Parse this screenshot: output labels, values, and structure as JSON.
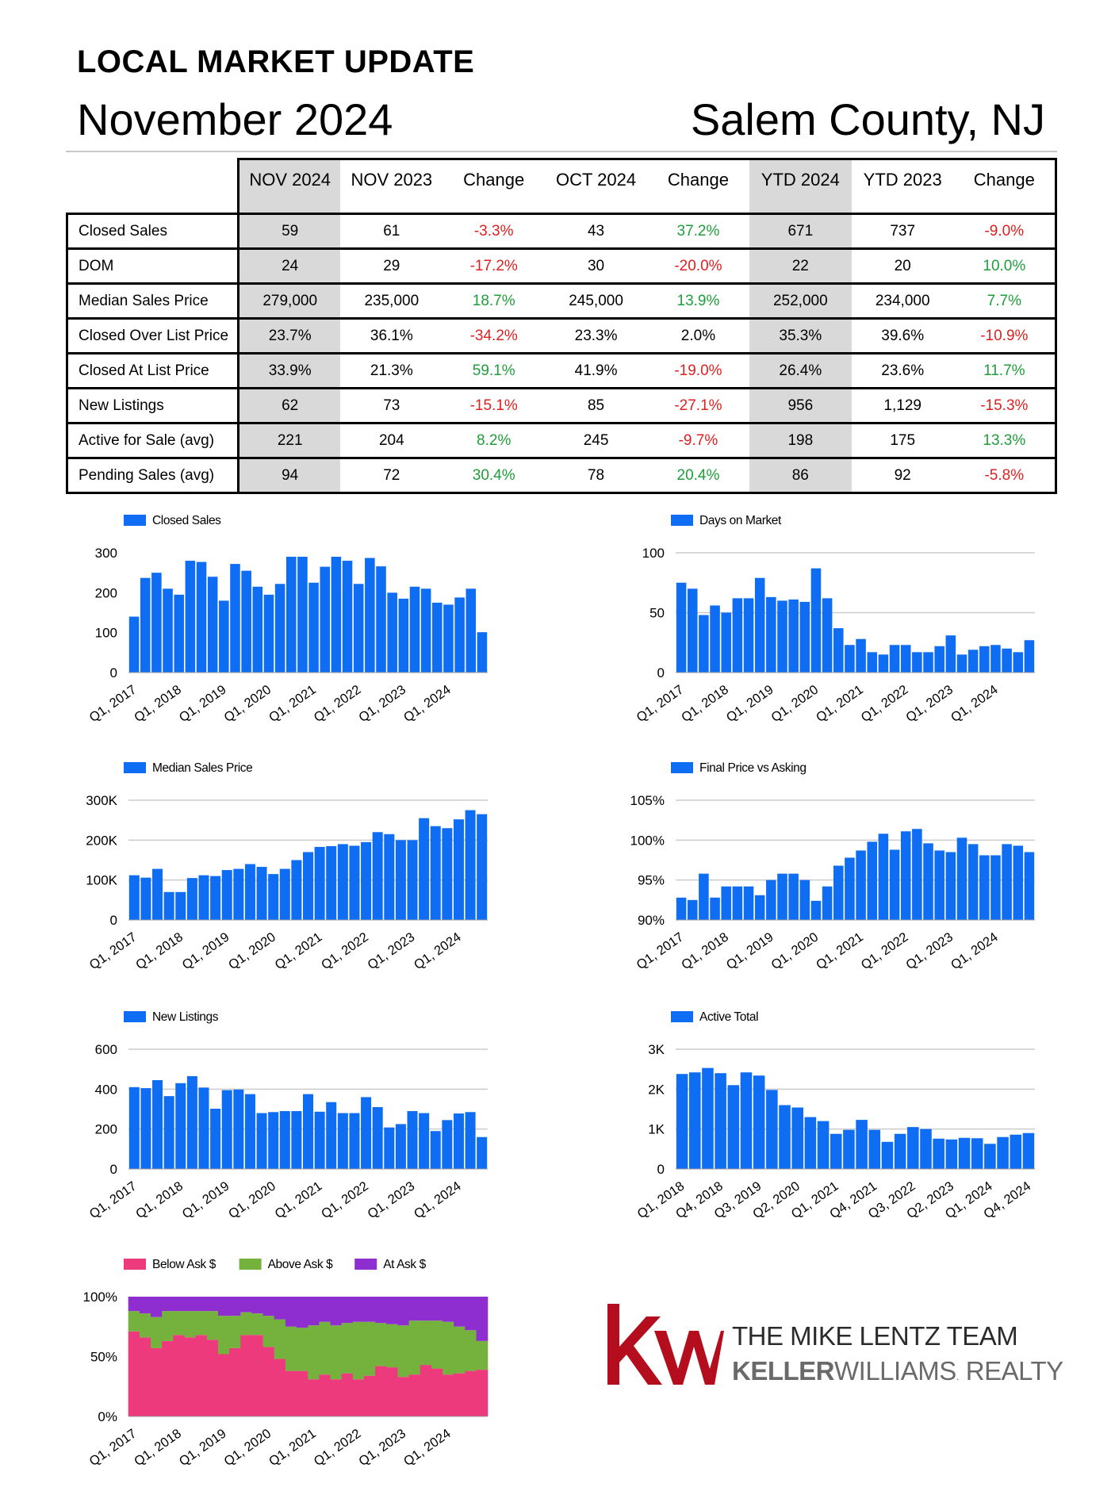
{
  "header": {
    "title": "LOCAL MARKET UPDATE",
    "month": "November 2024",
    "county": "Salem County, NJ"
  },
  "table": {
    "columns": [
      "NOV 2024",
      "NOV 2023",
      "Change",
      "OCT 2024",
      "Change",
      "YTD 2024",
      "YTD 2023",
      "Change"
    ],
    "rows": [
      {
        "label": "Closed Sales",
        "values": [
          "59",
          "61",
          "-3.3%",
          "43",
          "37.2%",
          "671",
          "737",
          "-9.0%"
        ]
      },
      {
        "label": "DOM",
        "values": [
          "24",
          "29",
          "-17.2%",
          "30",
          "-20.0%",
          "22",
          "20",
          "10.0%"
        ]
      },
      {
        "label": "Median Sales Price",
        "values": [
          "279,000",
          "235,000",
          "18.7%",
          "245,000",
          "13.9%",
          "252,000",
          "234,000",
          "7.7%"
        ]
      },
      {
        "label": "Closed Over List Price",
        "values": [
          "23.7%",
          "36.1%",
          "-34.2%",
          "23.3%",
          "2.0%",
          "35.3%",
          "39.6%",
          "-10.9%"
        ]
      },
      {
        "label": "Closed At List Price",
        "values": [
          "33.9%",
          "21.3%",
          "59.1%",
          "41.9%",
          "-19.0%",
          "26.4%",
          "23.6%",
          "11.7%"
        ]
      },
      {
        "label": "New Listings",
        "values": [
          "62",
          "73",
          "-15.1%",
          "85",
          "-27.1%",
          "956",
          "1,129",
          "-15.3%"
        ]
      },
      {
        "label": "Active for Sale (avg)",
        "values": [
          "221",
          "204",
          "8.2%",
          "245",
          "-9.7%",
          "198",
          "175",
          "13.3%"
        ]
      },
      {
        "label": "Pending Sales (avg)",
        "values": [
          "94",
          "72",
          "30.4%",
          "78",
          "20.4%",
          "86",
          "92",
          "-5.8%"
        ]
      }
    ],
    "change_colors": [
      [
        "neg",
        "pos",
        "neg"
      ],
      [
        "neg",
        "neg",
        "pos"
      ],
      [
        "pos",
        "pos",
        "pos"
      ],
      [
        "neg",
        "neu",
        "neg"
      ],
      [
        "pos",
        "neg",
        "pos"
      ],
      [
        "neg",
        "neg",
        "neg"
      ],
      [
        "pos",
        "neg",
        "pos"
      ],
      [
        "pos",
        "pos",
        "neg"
      ]
    ]
  },
  "colors": {
    "bar": "#0f6df3",
    "below_ask": "#ec3a7c",
    "above_ask": "#74b23d",
    "at_ask": "#8e2ed0",
    "positive": "#1e9e3a",
    "negative": "#e02020",
    "highlight_cell": "#d9d9d9",
    "logo_red": "#b40d1e"
  },
  "chart_data": [
    {
      "id": "closed-sales",
      "type": "bar",
      "series": [
        {
          "name": "Closed Sales",
          "values": [
            140,
            237,
            250,
            210,
            195,
            280,
            277,
            240,
            180,
            272,
            255,
            215,
            195,
            222,
            290,
            290,
            225,
            265,
            290,
            280,
            222,
            287,
            266,
            200,
            185,
            215,
            210,
            175,
            170,
            188,
            210,
            101
          ]
        }
      ],
      "ylim": [
        0,
        300
      ],
      "yticks": [
        "0",
        "100",
        "200",
        "300"
      ],
      "xtick_labels": [
        "Q1, 2017",
        "Q1, 2018",
        "Q1, 2019",
        "Q1, 2020",
        "Q1, 2021",
        "Q1, 2022",
        "Q1, 2023",
        "Q1, 2024"
      ],
      "xtick_index": [
        0,
        4,
        8,
        12,
        16,
        20,
        24,
        28
      ],
      "grid": false
    },
    {
      "id": "days-on-market",
      "type": "bar",
      "series": [
        {
          "name": "Days on Market",
          "values": [
            75,
            70,
            48,
            56,
            50,
            62,
            62,
            79,
            63,
            60,
            61,
            59,
            87,
            62,
            37,
            23,
            28,
            17,
            15,
            23,
            23,
            17,
            17,
            22,
            31,
            15,
            19,
            22,
            23,
            20,
            17,
            27
          ]
        }
      ],
      "ylim": [
        0,
        100
      ],
      "yticks": [
        "0",
        "50",
        "100"
      ],
      "xtick_labels": [
        "Q1, 2017",
        "Q1, 2018",
        "Q1, 2019",
        "Q1, 2020",
        "Q1, 2021",
        "Q1, 2022",
        "Q1, 2023",
        "Q1, 2024"
      ],
      "xtick_index": [
        0,
        4,
        8,
        12,
        16,
        20,
        24,
        28
      ],
      "grid": true
    },
    {
      "id": "median-sales-price",
      "type": "bar",
      "series": [
        {
          "name": "Median Sales Price",
          "values": [
            112000,
            106000,
            128000,
            70000,
            70000,
            105000,
            112000,
            110000,
            125000,
            128000,
            140000,
            133000,
            115000,
            128000,
            150000,
            170000,
            183000,
            185000,
            190000,
            186000,
            195000,
            220000,
            215000,
            200000,
            200000,
            255000,
            235000,
            230000,
            252000,
            275000,
            265000
          ]
        }
      ],
      "ylim": [
        0,
        300000
      ],
      "yticks": [
        "0",
        "100K",
        "200K",
        "300K"
      ],
      "xtick_labels": [
        "Q1, 2017",
        "Q1, 2018",
        "Q1, 2019",
        "Q1, 2020",
        "Q1, 2021",
        "Q1, 2022",
        "Q1, 2023",
        "Q1, 2024"
      ],
      "xtick_index": [
        0,
        4,
        8,
        12,
        16,
        20,
        24,
        28
      ],
      "grid": true
    },
    {
      "id": "final-price-vs-asking",
      "type": "bar",
      "series": [
        {
          "name": "Final Price vs Asking",
          "values": [
            92.8,
            92.5,
            95.8,
            92.8,
            94.2,
            94.2,
            94.2,
            93.1,
            95.0,
            95.8,
            95.8,
            95.0,
            92.4,
            94.2,
            96.8,
            97.8,
            98.7,
            99.8,
            100.8,
            98.8,
            101.1,
            101.4,
            99.6,
            98.7,
            98.5,
            100.3,
            99.5,
            98.1,
            98.1,
            99.5,
            99.3,
            98.5
          ]
        }
      ],
      "ylim": [
        90,
        105
      ],
      "yticks": [
        "90%",
        "95%",
        "100%",
        "105%"
      ],
      "xtick_labels": [
        "Q1, 2017",
        "Q1, 2018",
        "Q1, 2019",
        "Q1, 2020",
        "Q1, 2021",
        "Q1, 2022",
        "Q1, 2023",
        "Q1, 2024"
      ],
      "xtick_index": [
        0,
        4,
        8,
        12,
        16,
        20,
        24,
        28
      ],
      "grid": true
    },
    {
      "id": "new-listings",
      "type": "bar",
      "series": [
        {
          "name": "New Listings",
          "values": [
            410,
            405,
            445,
            365,
            430,
            465,
            408,
            302,
            395,
            398,
            375,
            280,
            285,
            290,
            290,
            375,
            287,
            335,
            280,
            280,
            360,
            310,
            208,
            225,
            290,
            280,
            190,
            245,
            278,
            285,
            160
          ]
        }
      ],
      "ylim": [
        0,
        600
      ],
      "yticks": [
        "0",
        "200",
        "400",
        "600"
      ],
      "xtick_labels": [
        "Q1, 2017",
        "Q1, 2018",
        "Q1, 2019",
        "Q1, 2020",
        "Q1, 2021",
        "Q1, 2022",
        "Q1, 2023",
        "Q1, 2024"
      ],
      "xtick_index": [
        0,
        4,
        8,
        12,
        16,
        20,
        24,
        28
      ],
      "grid": true
    },
    {
      "id": "active-total",
      "type": "bar",
      "series": [
        {
          "name": "Active Total",
          "values": [
            2380,
            2420,
            2530,
            2400,
            2100,
            2420,
            2340,
            1980,
            1600,
            1540,
            1300,
            1200,
            880,
            980,
            1230,
            980,
            680,
            880,
            1050,
            1000,
            760,
            740,
            780,
            770,
            630,
            800,
            860,
            900
          ]
        }
      ],
      "ylim": [
        0,
        3000
      ],
      "yticks": [
        "0",
        "1K",
        "2K",
        "3K"
      ],
      "xtick_labels": [
        "Q1, 2018",
        "Q4, 2018",
        "Q3, 2019",
        "Q2, 2020",
        "Q1, 2021",
        "Q4, 2021",
        "Q3, 2022",
        "Q2, 2023",
        "Q1, 2024",
        "Q4, 2024"
      ],
      "xtick_index": [
        0,
        3,
        6,
        9,
        12,
        15,
        18,
        21,
        24,
        27
      ],
      "grid": true
    },
    {
      "id": "ask-breakdown",
      "type": "area",
      "stacked": true,
      "series": [
        {
          "name": "Below Ask $",
          "values": [
            71,
            66,
            57,
            63,
            68,
            66,
            68,
            64,
            52,
            57,
            68,
            68,
            58,
            48,
            38,
            38,
            31,
            35,
            31,
            36,
            31,
            34,
            42,
            41,
            33,
            35,
            43,
            40,
            35,
            36,
            38,
            39
          ]
        },
        {
          "name": "Above Ask $",
          "values": [
            17,
            20,
            26,
            25,
            20,
            22,
            20,
            24,
            32,
            27,
            19,
            18,
            26,
            33,
            37,
            36,
            45,
            44,
            45,
            42,
            48,
            45,
            36,
            36,
            43,
            45,
            37,
            40,
            44,
            39,
            34,
            24
          ]
        },
        {
          "name": "At Ask $",
          "values": [
            12,
            14,
            17,
            12,
            12,
            12,
            12,
            12,
            16,
            16,
            13,
            14,
            16,
            19,
            25,
            26,
            24,
            21,
            24,
            22,
            21,
            21,
            22,
            23,
            24,
            20,
            20,
            20,
            21,
            25,
            28,
            37
          ]
        }
      ],
      "ylim": [
        0,
        100
      ],
      "yticks": [
        "0%",
        "50%",
        "100%"
      ],
      "xtick_labels": [
        "Q1, 2017",
        "Q1, 2018",
        "Q1, 2019",
        "Q1, 2020",
        "Q1, 2021",
        "Q1, 2022",
        "Q1, 2023",
        "Q1, 2024"
      ],
      "xtick_index": [
        0,
        4,
        8,
        12,
        16,
        20,
        24,
        28
      ],
      "grid": false
    }
  ],
  "logo": {
    "mark": "kw",
    "team": "THE MIKE LENTZ TEAM",
    "brand_bold": "KELLER",
    "brand_rest": "WILLIAMS",
    "brand_suffix": "REALTY"
  }
}
